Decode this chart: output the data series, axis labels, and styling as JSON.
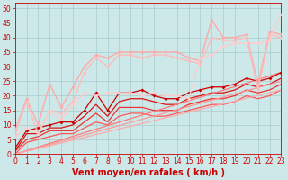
{
  "background_color": "#cce8e8",
  "grid_color": "#aacccc",
  "xlabel": "Vent moyen/en rafales ( km/h )",
  "xlim": [
    0,
    23
  ],
  "ylim": [
    0,
    52
  ],
  "xticks": [
    0,
    1,
    2,
    3,
    4,
    5,
    6,
    7,
    8,
    9,
    10,
    11,
    12,
    13,
    14,
    15,
    16,
    17,
    18,
    19,
    20,
    21,
    22,
    23
  ],
  "yticks": [
    0,
    5,
    10,
    15,
    20,
    25,
    30,
    35,
    40,
    45,
    50
  ],
  "lines": [
    {
      "x": [
        0,
        1,
        2,
        3,
        4,
        5,
        6,
        7,
        8,
        9,
        10,
        11,
        12,
        13,
        14,
        15,
        16,
        17,
        18,
        19,
        20,
        21,
        22,
        23
      ],
      "y": [
        2,
        8,
        9,
        10,
        11,
        11,
        15,
        21,
        15,
        21,
        21,
        22,
        20,
        19,
        19,
        21,
        22,
        23,
        23,
        24,
        26,
        25,
        26,
        28
      ],
      "color": "#cc0000",
      "lw": 0.9,
      "marker": "D",
      "ms": 2.0
    },
    {
      "x": [
        0,
        1,
        2,
        3,
        4,
        5,
        6,
        7,
        8,
        9,
        10,
        11,
        12,
        13,
        14,
        15,
        16,
        17,
        18,
        19,
        20,
        21,
        22,
        23
      ],
      "y": [
        1,
        7,
        7,
        9,
        9,
        10,
        13,
        17,
        13,
        18,
        19,
        19,
        18,
        17,
        17,
        19,
        20,
        21,
        21,
        22,
        24,
        23,
        24,
        26
      ],
      "color": "#dd1111",
      "lw": 0.9,
      "marker": null,
      "ms": 0
    },
    {
      "x": [
        0,
        1,
        2,
        3,
        4,
        5,
        6,
        7,
        8,
        9,
        10,
        11,
        12,
        13,
        14,
        15,
        16,
        17,
        18,
        19,
        20,
        21,
        22,
        23
      ],
      "y": [
        1,
        5,
        6,
        8,
        8,
        8,
        11,
        14,
        11,
        16,
        16,
        16,
        15,
        15,
        15,
        17,
        18,
        19,
        19,
        20,
        22,
        21,
        22,
        24
      ],
      "color": "#ee3333",
      "lw": 0.9,
      "marker": null,
      "ms": 0
    },
    {
      "x": [
        0,
        1,
        2,
        3,
        4,
        5,
        6,
        7,
        8,
        9,
        10,
        11,
        12,
        13,
        14,
        15,
        16,
        17,
        18,
        19,
        20,
        21,
        22,
        23
      ],
      "y": [
        0,
        4,
        5,
        6,
        7,
        7,
        9,
        11,
        10,
        13,
        14,
        14,
        13,
        13,
        14,
        15,
        16,
        17,
        17,
        18,
        20,
        19,
        20,
        22
      ],
      "color": "#ff5555",
      "lw": 0.9,
      "marker": null,
      "ms": 0
    },
    {
      "x": [
        0,
        23
      ],
      "y": [
        0,
        28
      ],
      "color": "#ff7777",
      "lw": 0.9,
      "marker": null,
      "ms": 0
    },
    {
      "x": [
        0,
        23
      ],
      "y": [
        0,
        25
      ],
      "color": "#ff9999",
      "lw": 0.9,
      "marker": null,
      "ms": 0
    },
    {
      "x": [
        0,
        23
      ],
      "y": [
        0,
        22
      ],
      "color": "#ffaaaa",
      "lw": 0.9,
      "marker": null,
      "ms": 0
    },
    {
      "x": [
        0,
        1,
        2,
        3,
        4,
        5,
        6,
        7,
        8,
        9,
        10,
        11,
        12,
        13,
        14,
        15,
        16,
        17,
        18,
        19,
        20,
        21,
        22,
        23
      ],
      "y": [
        8,
        19,
        10,
        24,
        16,
        23,
        30,
        34,
        33,
        35,
        35,
        35,
        35,
        35,
        35,
        33,
        32,
        46,
        40,
        40,
        41,
        24,
        42,
        41
      ],
      "color": "#ffaaaa",
      "lw": 1.0,
      "marker": "D",
      "ms": 2.0
    },
    {
      "x": [
        0,
        1,
        2,
        3,
        4,
        5,
        6,
        7,
        8,
        9,
        10,
        11,
        12,
        13,
        14,
        15,
        16,
        17,
        18,
        19,
        20,
        21,
        22,
        23
      ],
      "y": [
        7,
        18,
        7,
        15,
        14,
        18,
        28,
        33,
        30,
        34,
        34,
        33,
        34,
        34,
        33,
        32,
        31,
        40,
        39,
        39,
        40,
        22,
        41,
        40
      ],
      "color": "#ffbbbb",
      "lw": 1.0,
      "marker": "D",
      "ms": 2.0
    },
    {
      "x": [
        0,
        1,
        2,
        3,
        4,
        5,
        6,
        7,
        8,
        9,
        10,
        11,
        12,
        13,
        14,
        15,
        16,
        17,
        18,
        19,
        20,
        21,
        22,
        23
      ],
      "y": [
        6,
        9,
        7,
        15,
        12,
        17,
        21,
        20,
        21,
        21,
        21,
        20,
        21,
        20,
        20,
        19,
        33,
        34,
        37,
        38,
        38,
        38,
        39,
        48
      ],
      "color": "#ffcccc",
      "lw": 1.0,
      "marker": "D",
      "ms": 2.0
    }
  ],
  "xlabel_color": "#cc0000",
  "tick_color": "#cc0000",
  "axis_color": "#cc0000",
  "label_fontsize": 7,
  "tick_fontsize": 5.5
}
